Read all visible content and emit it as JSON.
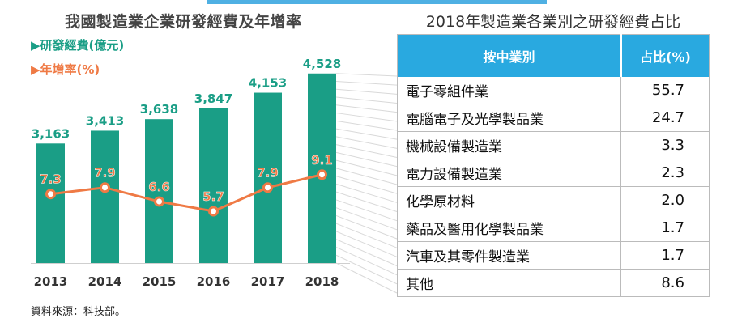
{
  "left_chart": {
    "title": "我國製造業企業研發經費及年增率",
    "legend_rd": "▶研發經費(億元)",
    "legend_growth": "▶年增率(%)",
    "source": "資料來源：科技部。"
  },
  "right_table": {
    "title": "2018年製造業各業別之研發經費占比",
    "header_industry": "按中業別",
    "header_share": "占比(%)",
    "rows": [
      {
        "industry": "電子零組件業",
        "share": "55.7"
      },
      {
        "industry": "電腦電子及光學製品業",
        "share": "24.7"
      },
      {
        "industry": "機械設備製造業",
        "share": "3.3"
      },
      {
        "industry": "電力設備製造業",
        "share": "2.3"
      },
      {
        "industry": "化學原材料",
        "share": "2.0"
      },
      {
        "industry": "藥品及醫用化學製品業",
        "share": "1.7"
      },
      {
        "industry": "汽車及其零件製造業",
        "share": "1.7"
      },
      {
        "industry": "其他",
        "share": "8.6"
      }
    ]
  },
  "colors": {
    "bar": "#1a9e86",
    "line": "#ef7a45",
    "header": "#29a9e0",
    "bar_label": "#1a9e86"
  },
  "chart_data": {
    "type": "bar",
    "categories": [
      "2013",
      "2014",
      "2015",
      "2016",
      "2017",
      "2018"
    ],
    "series": [
      {
        "name": "研發經費(億元)",
        "values": [
          3163,
          3413,
          3638,
          3847,
          4153,
          4528
        ],
        "labels": [
          "3,163",
          "3,413",
          "3,638",
          "3,847",
          "4,153",
          "4,528"
        ]
      },
      {
        "name": "年增率(%)",
        "type": "line",
        "values": [
          7.3,
          7.9,
          6.6,
          5.7,
          7.9,
          9.1
        ],
        "labels": [
          "7.3",
          "7.9",
          "6.6",
          "5.7",
          "7.9",
          "9.1"
        ]
      }
    ],
    "title": "我國製造業企業研發經費及年增率"
  }
}
